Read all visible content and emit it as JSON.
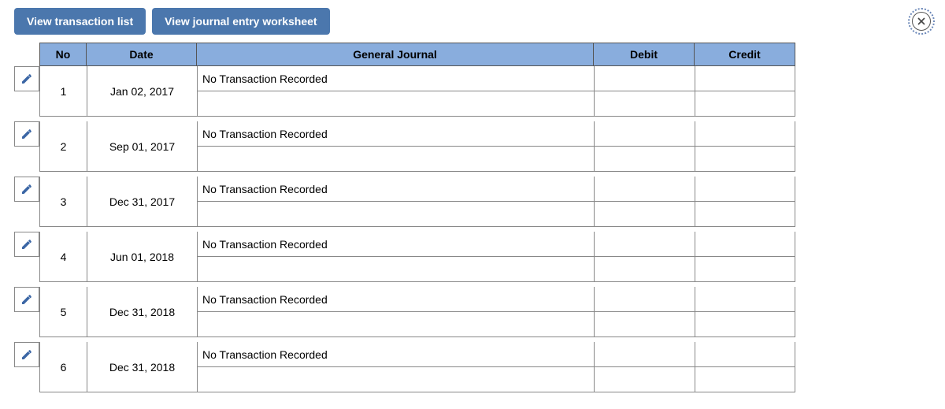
{
  "toolbar": {
    "view_transaction_list": "View transaction list",
    "view_journal_worksheet": "View journal entry worksheet"
  },
  "colors": {
    "button_bg": "#4b77ad",
    "button_text": "#ffffff",
    "header_bg": "#89addd",
    "border": "#888888",
    "edit_icon": "#3b66a5",
    "close_icon": "#444444"
  },
  "table": {
    "headers": {
      "no": "No",
      "date": "Date",
      "general_journal": "General Journal",
      "debit": "Debit",
      "credit": "Credit"
    },
    "rows": [
      {
        "no": "1",
        "date": "Jan 02, 2017",
        "journal": "No Transaction Recorded",
        "debit": "",
        "credit": ""
      },
      {
        "no": "2",
        "date": "Sep 01, 2017",
        "journal": "No Transaction Recorded",
        "debit": "",
        "credit": ""
      },
      {
        "no": "3",
        "date": "Dec 31, 2017",
        "journal": "No Transaction Recorded",
        "debit": "",
        "credit": ""
      },
      {
        "no": "4",
        "date": "Jun 01, 2018",
        "journal": "No Transaction Recorded",
        "debit": "",
        "credit": ""
      },
      {
        "no": "5",
        "date": "Dec 31, 2018",
        "journal": "No Transaction Recorded",
        "debit": "",
        "credit": ""
      },
      {
        "no": "6",
        "date": "Dec 31, 2018",
        "journal": "No Transaction Recorded",
        "debit": "",
        "credit": ""
      }
    ]
  }
}
